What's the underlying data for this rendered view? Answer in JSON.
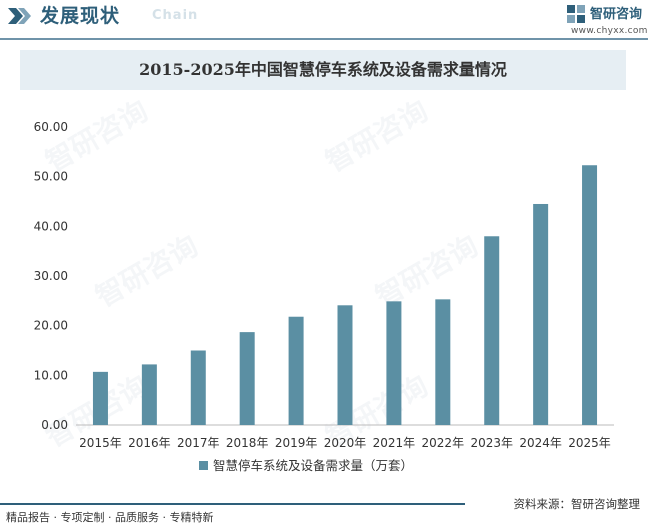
{
  "header": {
    "section_title": "发展现状",
    "background_word": "Chain",
    "brand_name": "智研咨询",
    "brand_url": "www.chyxx.com",
    "accent_color": "#2e5f7a"
  },
  "chart_data": {
    "type": "bar",
    "title": "2015-2025年中国智慧停车系统及设备需求量情况",
    "categories": [
      "2015年",
      "2016年",
      "2017年",
      "2018年",
      "2019年",
      "2020年",
      "2021年",
      "2022年",
      "2023年",
      "2024年",
      "2025年"
    ],
    "series": [
      {
        "name": "智慧停车系统及设备需求量（万套）",
        "values": [
          10.7,
          12.2,
          15.0,
          18.7,
          21.8,
          24.1,
          24.9,
          25.3,
          38.0,
          44.5,
          52.3
        ],
        "color": "#5b8fa3"
      }
    ],
    "y_ticks": [
      "0.00",
      "10.00",
      "20.00",
      "30.00",
      "40.00",
      "50.00",
      "60.00"
    ],
    "ylim": [
      0,
      60
    ],
    "grid": false,
    "legend_position": "bottom"
  },
  "watermark": "智研咨询",
  "footer": {
    "left_text": "精品报告 · 专项定制 · 品质服务 · 专精特新",
    "source_text": "资料来源：智研咨询整理"
  }
}
